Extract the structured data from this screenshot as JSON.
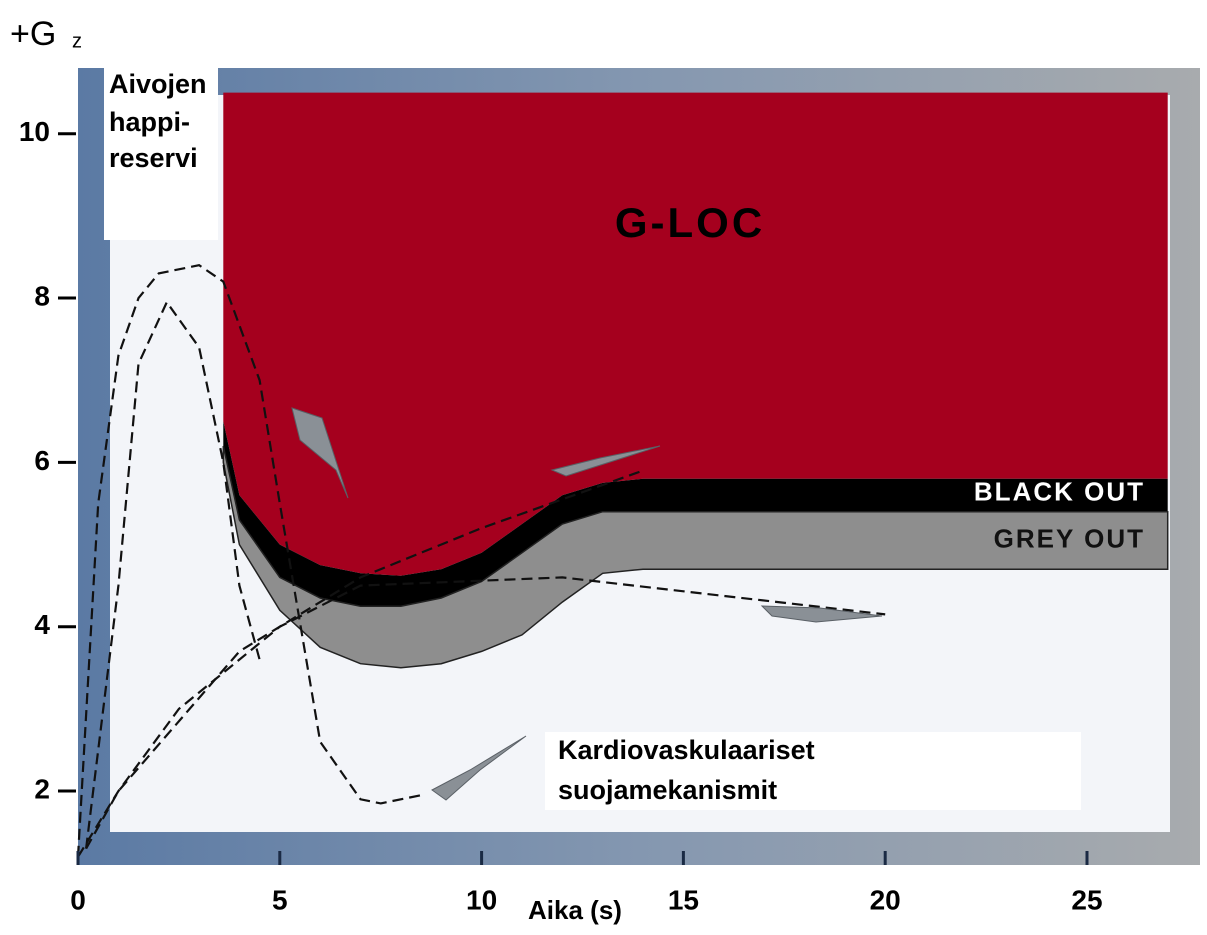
{
  "chart_data": {
    "type": "area",
    "y_label": "+G",
    "y_label_sub": "z",
    "x_label": "Aika (s)",
    "annotations": [
      "Aivojen",
      "happi-",
      "reservi",
      "Kardiovaskulaariset",
      "suojamekanismit"
    ],
    "xlim": [
      0,
      27.8
    ],
    "ylim": [
      1.1,
      10.8
    ],
    "xticks": [
      0,
      5,
      10,
      15,
      20,
      25
    ],
    "yticks": [
      2,
      4,
      6,
      8,
      10
    ],
    "region_top": 10.5,
    "x": [
      3.6,
      4,
      5,
      6,
      7,
      8,
      9,
      10,
      11,
      12,
      13,
      14,
      27
    ],
    "series": [
      {
        "name": "G-LOC",
        "color": "#a5001e",
        "values": [
          6.5,
          5.6,
          5.0,
          4.75,
          4.65,
          4.62,
          4.7,
          4.9,
          5.25,
          5.6,
          5.75,
          5.8,
          5.8
        ]
      },
      {
        "name": "BLACK OUT",
        "color": "#000000",
        "values": [
          6.2,
          5.3,
          4.6,
          4.35,
          4.25,
          4.25,
          4.35,
          4.55,
          4.9,
          5.25,
          5.4,
          5.4,
          5.4
        ]
      },
      {
        "name": "GREY OUT",
        "color": "#8e8e8e",
        "values": [
          6.0,
          5.0,
          4.2,
          3.75,
          3.55,
          3.5,
          3.55,
          3.7,
          3.9,
          4.3,
          4.65,
          4.7,
          4.7
        ]
      }
    ],
    "curves": [
      {
        "x": [
          0,
          0.5,
          1,
          1.5,
          2,
          3,
          3.6,
          4.5,
          5,
          6,
          7,
          7.5,
          8.5
        ],
        "values": [
          1.2,
          5.5,
          7.3,
          8.0,
          8.3,
          8.4,
          8.2,
          7.0,
          5.5,
          2.6,
          1.9,
          1.85,
          1.95
        ]
      },
      {
        "x": [
          0.2,
          1,
          1.5,
          2.2,
          3,
          3.6,
          4,
          4.5
        ],
        "values": [
          1.3,
          4.5,
          7.2,
          7.95,
          7.4,
          6.0,
          4.5,
          3.6
        ]
      },
      {
        "x": [
          0,
          1,
          2.5,
          5,
          7,
          12,
          20
        ],
        "values": [
          1.2,
          2.0,
          3.0,
          4.0,
          4.5,
          4.6,
          4.15
        ]
      },
      {
        "x": [
          0.2,
          1,
          4,
          7,
          10,
          14
        ],
        "values": [
          1.3,
          2.0,
          3.7,
          4.6,
          5.2,
          5.9
        ]
      }
    ]
  }
}
